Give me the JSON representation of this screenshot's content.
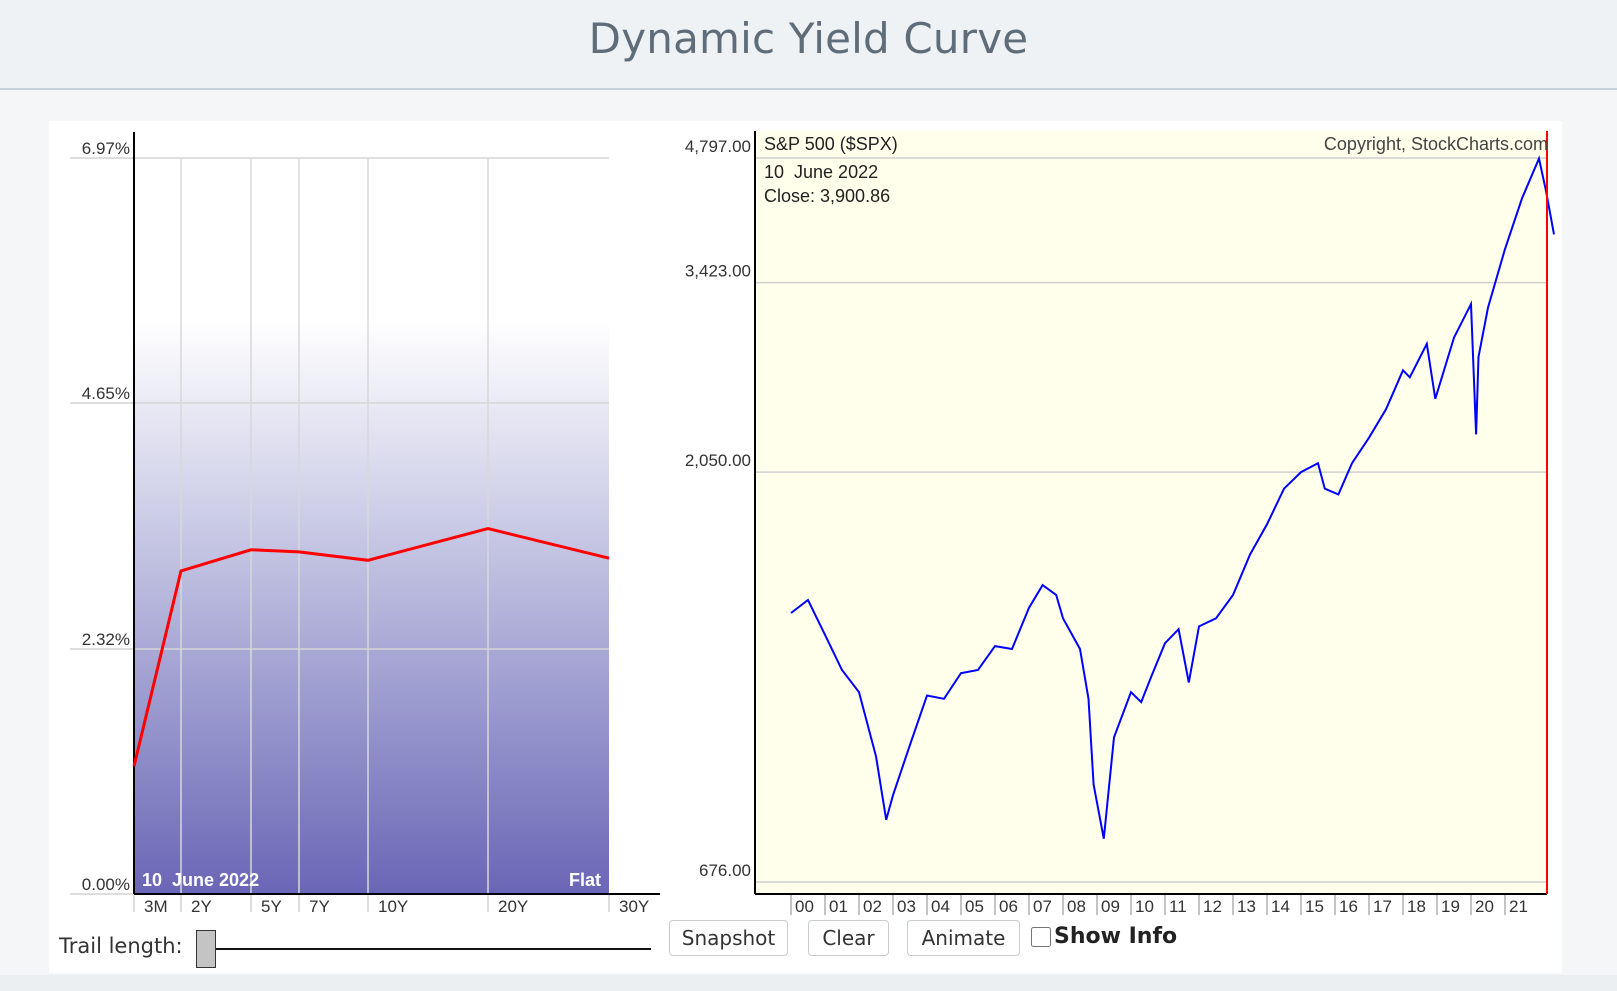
{
  "page": {
    "title": "Dynamic Yield Curve"
  },
  "yield_chart": {
    "date_label": "10  June 2022",
    "status_label": "Flat",
    "y_ticks": [
      "6.97%",
      "4.65%",
      "2.32%",
      "0.00%"
    ],
    "maturities": [
      "3M",
      "2Y",
      "5Y",
      "7Y",
      "10Y",
      "20Y",
      "30Y"
    ],
    "curve_color": "#ff0000"
  },
  "spx_chart": {
    "title": "S&P 500 ($SPX)",
    "copyright": "Copyright, StockCharts.com",
    "info_date": "10  June 2022",
    "info_close": "Close: 3,900.86",
    "y_ticks": [
      "4,797.00",
      "3,423.00",
      "2,050.00",
      "676.00"
    ],
    "x_ticks": [
      "00",
      "01",
      "02",
      "03",
      "04",
      "05",
      "06",
      "07",
      "08",
      "09",
      "10",
      "11",
      "12",
      "13",
      "14",
      "15",
      "16",
      "17",
      "18",
      "19",
      "20",
      "21"
    ],
    "line_color": "#0000ff",
    "cursor_color": "#ff0000"
  },
  "controls": {
    "trail_label": "Trail length:",
    "trail_value": 0,
    "snapshot_label": "Snapshot",
    "clear_label": "Clear",
    "animate_label": "Animate",
    "show_info_label": "Show Info",
    "show_info_checked": false
  },
  "chart_data": [
    {
      "type": "line",
      "title": "",
      "xlabel": "",
      "ylabel": "",
      "categories": [
        "3M",
        "2Y",
        "5Y",
        "7Y",
        "10Y",
        "20Y",
        "30Y"
      ],
      "series": [
        {
          "values": [
            1.21,
            3.06,
            3.26,
            3.24,
            3.16,
            3.46,
            3.18
          ]
        }
      ],
      "ylim": [
        0,
        6.97
      ],
      "yticks": [
        0.0,
        2.32,
        4.65,
        6.97
      ],
      "grid": true,
      "annotations": [
        "10  June 2022",
        "Flat"
      ]
    },
    {
      "type": "line",
      "title": "S&P 500 ($SPX)",
      "xlabel": "",
      "ylabel": "",
      "x": [
        2000.0,
        2000.5,
        2001.0,
        2001.5,
        2002.0,
        2002.5,
        2002.8,
        2003.0,
        2003.5,
        2004.0,
        2004.5,
        2005.0,
        2005.5,
        2006.0,
        2006.5,
        2007.0,
        2007.4,
        2007.8,
        2008.0,
        2008.5,
        2008.75,
        2008.9,
        2009.2,
        2009.5,
        2010.0,
        2010.3,
        2010.6,
        2011.0,
        2011.4,
        2011.7,
        2012.0,
        2012.5,
        2013.0,
        2013.5,
        2014.0,
        2014.5,
        2015.0,
        2015.5,
        2015.7,
        2016.1,
        2016.5,
        2017.0,
        2017.5,
        2018.0,
        2018.2,
        2018.7,
        2018.95,
        2019.5,
        2020.0,
        2020.15,
        2020.22,
        2020.5,
        2021.0,
        2021.5,
        2022.0,
        2022.2,
        2022.44
      ],
      "values": [
        1400,
        1450,
        1320,
        1200,
        1130,
        950,
        800,
        855,
        980,
        1120,
        1110,
        1190,
        1200,
        1280,
        1270,
        1420,
        1510,
        1470,
        1380,
        1270,
        1110,
        880,
        760,
        1000,
        1130,
        1100,
        1180,
        1290,
        1340,
        1160,
        1350,
        1380,
        1470,
        1640,
        1780,
        1960,
        2050,
        2100,
        1960,
        1930,
        2100,
        2250,
        2430,
        2700,
        2650,
        2900,
        2500,
        2950,
        3230,
        2270,
        2800,
        3200,
        3750,
        4300,
        4790,
        4400,
        3900.86
      ],
      "ylim": [
        676,
        4797
      ],
      "yticks": [
        676.0,
        2050.0,
        3423.0,
        4797.0
      ],
      "grid": true,
      "log_scale": true,
      "annotations": [
        "10  June 2022",
        "Close: 3,900.86"
      ]
    }
  ]
}
